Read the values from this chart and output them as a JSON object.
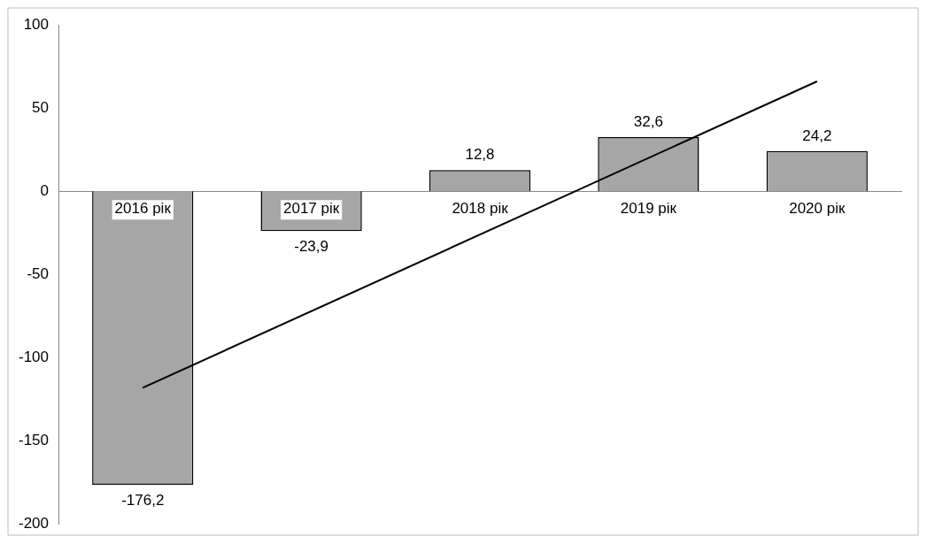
{
  "chart_data": {
    "type": "bar",
    "categories": [
      "2016 рік",
      "2017 рік",
      "2018 рік",
      "2019 рік",
      "2020 рік"
    ],
    "series": [
      {
        "color": "#a6a6a6",
        "values": [
          -176.2,
          -23.9,
          12.8,
          32.6,
          24.2
        ],
        "value_labels": [
          "-176,2",
          "-23,9",
          "12,8",
          "32,6",
          "24,2"
        ]
      },
      {
        "type": "line",
        "color": "#000000",
        "x": [
          "2016 рік",
          "2020 рік"
        ],
        "values": [
          -118,
          66
        ],
        "marker": "none"
      }
    ],
    "ylim": [
      -200,
      100
    ],
    "yticks": [
      -200,
      -150,
      -100,
      -50,
      0,
      50,
      100
    ],
    "grid": false,
    "legend": false
  }
}
